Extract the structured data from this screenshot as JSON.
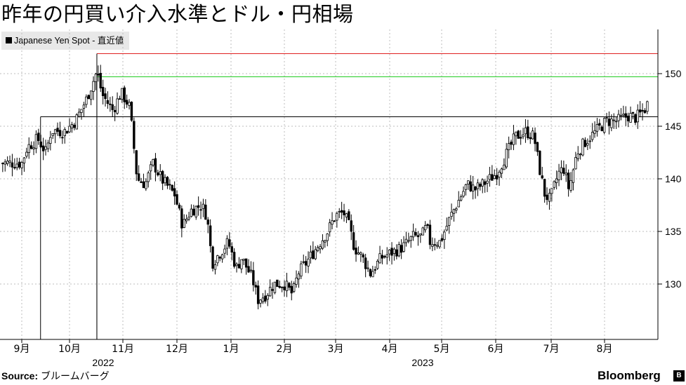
{
  "title": "昨年の円買い介入水準とドル・円相場",
  "legend": {
    "label": "Japanese Yen Spot - 直近値"
  },
  "source": {
    "label": "Source:",
    "text": "ブルームバーグ"
  },
  "brand": {
    "name": "Bloomberg",
    "mark": "B"
  },
  "colors": {
    "candle": "#000000",
    "upper_line": "#e02020",
    "mid_line": "#22cc22",
    "base_line": "#000000",
    "grid": "#bdbdbd"
  },
  "chart_data": {
    "type": "candlestick",
    "series_name": "Japanese Yen Spot - 直近値",
    "y_ticks": [
      130,
      135,
      140,
      145,
      150
    ],
    "ylim": [
      124.5,
      154.5
    ],
    "x_ticks": [
      "9月",
      "10月",
      "11月",
      "12月",
      "1月",
      "2月",
      "3月",
      "4月",
      "5月",
      "6月",
      "7月",
      "8月"
    ],
    "year_labels": [
      {
        "label": "2022",
        "after_month_index": 1
      },
      {
        "label": "2023",
        "after_month_index": 7
      }
    ],
    "levels": [
      {
        "name": "upper",
        "value": 151.9,
        "start_month": 1.4
      },
      {
        "name": "mid",
        "value": 149.7,
        "start_month": 1.4
      },
      {
        "name": "base",
        "value": 145.9,
        "start_month": 0.35
      }
    ],
    "path_points": [
      [
        0.0,
        141.5
      ],
      [
        0.1,
        143.0
      ],
      [
        0.3,
        143.8
      ],
      [
        0.45,
        142.5
      ],
      [
        0.55,
        144.6
      ],
      [
        0.8,
        144.5
      ],
      [
        1.0,
        145.5
      ],
      [
        1.2,
        147.5
      ],
      [
        1.4,
        150.2
      ],
      [
        1.5,
        148.0
      ],
      [
        1.7,
        146.5
      ],
      [
        1.85,
        148.2
      ],
      [
        2.0,
        147.0
      ],
      [
        2.05,
        145.0
      ],
      [
        2.15,
        140.0
      ],
      [
        2.3,
        139.5
      ],
      [
        2.45,
        141.5
      ],
      [
        2.6,
        140.0
      ],
      [
        2.85,
        138.5
      ],
      [
        3.0,
        135.5
      ],
      [
        3.15,
        137.0
      ],
      [
        3.35,
        137.5
      ],
      [
        3.45,
        136.5
      ],
      [
        3.55,
        132.0
      ],
      [
        3.7,
        133.0
      ],
      [
        3.85,
        134.0
      ],
      [
        4.0,
        131.5
      ],
      [
        4.1,
        132.5
      ],
      [
        4.3,
        130.5
      ],
      [
        4.4,
        128.5
      ],
      [
        4.55,
        129.0
      ],
      [
        4.7,
        130.0
      ],
      [
        4.9,
        130.0
      ],
      [
        5.05,
        129.0
      ],
      [
        5.15,
        131.0
      ],
      [
        5.3,
        132.0
      ],
      [
        5.5,
        133.5
      ],
      [
        5.7,
        135.0
      ],
      [
        5.85,
        136.5
      ],
      [
        6.0,
        136.8
      ],
      [
        6.1,
        135.5
      ],
      [
        6.2,
        133.5
      ],
      [
        6.35,
        132.5
      ],
      [
        6.5,
        131.0
      ],
      [
        6.7,
        132.5
      ],
      [
        6.9,
        133.0
      ],
      [
        7.1,
        133.5
      ],
      [
        7.3,
        134.5
      ],
      [
        7.45,
        134.5
      ],
      [
        7.55,
        135.5
      ],
      [
        7.6,
        134.0
      ],
      [
        7.8,
        134.0
      ],
      [
        8.0,
        136.5
      ],
      [
        8.15,
        138.0
      ],
      [
        8.3,
        139.5
      ],
      [
        8.45,
        139.0
      ],
      [
        8.6,
        139.5
      ],
      [
        8.85,
        140.5
      ],
      [
        9.0,
        142.0
      ],
      [
        9.2,
        144.0
      ],
      [
        9.4,
        144.5
      ],
      [
        9.55,
        144.0
      ],
      [
        9.65,
        141.0
      ],
      [
        9.75,
        138.5
      ],
      [
        9.85,
        138.0
      ],
      [
        10.0,
        140.5
      ],
      [
        10.1,
        141.0
      ],
      [
        10.2,
        139.0
      ],
      [
        10.35,
        142.5
      ],
      [
        10.5,
        143.5
      ],
      [
        10.7,
        144.5
      ],
      [
        10.9,
        145.5
      ],
      [
        11.1,
        145.5
      ],
      [
        11.3,
        146.0
      ],
      [
        11.45,
        145.8
      ],
      [
        11.6,
        146.5
      ],
      [
        11.7,
        147.5
      ]
    ]
  }
}
